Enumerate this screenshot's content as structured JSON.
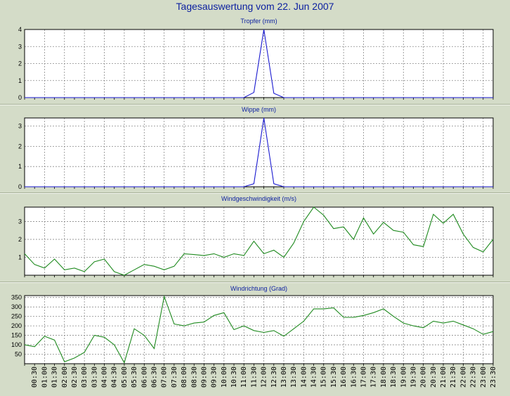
{
  "title": "Tagesauswertung vom 22. Jun 2007",
  "colors": {
    "background": "#d4dcc8",
    "plot_background": "#ffffff",
    "grid": "#8a8a8a",
    "title_text": "#0b1fa0",
    "rain_series": "#1a1ad0",
    "wind_series": "#1f8a1f"
  },
  "x_tick_labels": [
    "00:30",
    "01:00",
    "01:30",
    "02:00",
    "02:30",
    "03:00",
    "03:30",
    "04:00",
    "04:30",
    "05:00",
    "05:30",
    "06:00",
    "06:30",
    "07:00",
    "07:30",
    "08:00",
    "08:30",
    "09:00",
    "09:30",
    "10:00",
    "10:30",
    "11:00",
    "11:30",
    "12:00",
    "12:30",
    "13:00",
    "13:30",
    "14:00",
    "14:30",
    "15:00",
    "15:30",
    "16:00",
    "16:30",
    "17:00",
    "17:30",
    "18:00",
    "18:30",
    "19:00",
    "19:30",
    "20:00",
    "20:30",
    "21:00",
    "21:30",
    "22:00",
    "22:30",
    "23:00",
    "23:30"
  ],
  "chart_data": [
    {
      "type": "line",
      "title": "Tropfer (mm)",
      "color_key": "rain_series",
      "ylim": [
        0,
        4
      ],
      "yticks": [
        0,
        1,
        2,
        3,
        4
      ],
      "grid": true,
      "x": [
        "00:00",
        "00:30",
        "01:00",
        "01:30",
        "02:00",
        "02:30",
        "03:00",
        "03:30",
        "04:00",
        "04:30",
        "05:00",
        "05:30",
        "06:00",
        "06:30",
        "07:00",
        "07:30",
        "08:00",
        "08:30",
        "09:00",
        "09:30",
        "10:00",
        "10:30",
        "11:00",
        "11:30",
        "12:00",
        "12:30",
        "13:00",
        "13:30",
        "14:00",
        "14:30",
        "15:00",
        "15:30",
        "16:00",
        "16:30",
        "17:00",
        "17:30",
        "18:00",
        "18:30",
        "19:00",
        "19:30",
        "20:00",
        "20:30",
        "21:00",
        "21:30",
        "22:00",
        "22:30",
        "23:00",
        "23:30"
      ],
      "values": [
        0,
        0,
        0,
        0,
        0,
        0,
        0,
        0,
        0,
        0,
        0,
        0,
        0,
        0,
        0,
        0,
        0,
        0,
        0,
        0,
        0,
        0,
        0,
        0.3,
        4.0,
        0.25,
        0,
        0,
        0,
        0,
        0,
        0,
        0,
        0,
        0,
        0,
        0,
        0,
        0,
        0,
        0,
        0,
        0,
        0,
        0,
        0,
        0,
        0
      ]
    },
    {
      "type": "line",
      "title": "Wippe (mm)",
      "color_key": "rain_series",
      "ylim": [
        0,
        3.4
      ],
      "yticks": [
        0,
        1,
        2,
        3
      ],
      "grid": true,
      "x": [
        "00:00",
        "00:30",
        "01:00",
        "01:30",
        "02:00",
        "02:30",
        "03:00",
        "03:30",
        "04:00",
        "04:30",
        "05:00",
        "05:30",
        "06:00",
        "06:30",
        "07:00",
        "07:30",
        "08:00",
        "08:30",
        "09:00",
        "09:30",
        "10:00",
        "10:30",
        "11:00",
        "11:30",
        "12:00",
        "12:30",
        "13:00",
        "13:30",
        "14:00",
        "14:30",
        "15:00",
        "15:30",
        "16:00",
        "16:30",
        "17:00",
        "17:30",
        "18:00",
        "18:30",
        "19:00",
        "19:30",
        "20:00",
        "20:30",
        "21:00",
        "21:30",
        "22:00",
        "22:30",
        "23:00",
        "23:30"
      ],
      "values": [
        0,
        0,
        0,
        0,
        0,
        0,
        0,
        0,
        0,
        0,
        0,
        0,
        0,
        0,
        0,
        0,
        0,
        0,
        0,
        0,
        0,
        0,
        0,
        0.15,
        3.4,
        0.15,
        0,
        0,
        0,
        0,
        0,
        0,
        0,
        0,
        0,
        0,
        0,
        0,
        0,
        0,
        0,
        0,
        0,
        0,
        0,
        0,
        0,
        0
      ]
    },
    {
      "type": "line",
      "title": "Windgeschwindigkeit (m/s)",
      "color_key": "wind_series",
      "ylim": [
        0,
        3.8
      ],
      "yticks": [
        1,
        2,
        3
      ],
      "grid": true,
      "x": [
        "00:00",
        "00:30",
        "01:00",
        "01:30",
        "02:00",
        "02:30",
        "03:00",
        "03:30",
        "04:00",
        "04:30",
        "05:00",
        "05:30",
        "06:00",
        "06:30",
        "07:00",
        "07:30",
        "08:00",
        "08:30",
        "09:00",
        "09:30",
        "10:00",
        "10:30",
        "11:00",
        "11:30",
        "12:00",
        "12:30",
        "13:00",
        "13:30",
        "14:00",
        "14:30",
        "15:00",
        "15:30",
        "16:00",
        "16:30",
        "17:00",
        "17:30",
        "18:00",
        "18:30",
        "19:00",
        "19:30",
        "20:00",
        "20:30",
        "21:00",
        "21:30",
        "22:00",
        "22:30",
        "23:00",
        "23:30"
      ],
      "values": [
        1.2,
        0.6,
        0.4,
        0.9,
        0.3,
        0.4,
        0.2,
        0.75,
        0.9,
        0.2,
        0.0,
        0.3,
        0.6,
        0.5,
        0.3,
        0.5,
        1.2,
        1.15,
        1.1,
        1.2,
        1.0,
        1.2,
        1.1,
        1.9,
        1.2,
        1.4,
        1.0,
        1.8,
        3.0,
        3.8,
        3.35,
        2.6,
        2.7,
        2.0,
        3.2,
        2.3,
        2.95,
        2.5,
        2.4,
        1.7,
        1.6,
        3.4,
        2.9,
        3.4,
        2.3,
        1.55,
        1.3,
        2.0
      ]
    },
    {
      "type": "line",
      "title": "Windrichtung (Grad)",
      "color_key": "wind_series",
      "ylim": [
        0,
        360
      ],
      "yticks": [
        50,
        100,
        150,
        200,
        250,
        300,
        350
      ],
      "grid": true,
      "x": [
        "00:00",
        "00:30",
        "01:00",
        "01:30",
        "02:00",
        "02:30",
        "03:00",
        "03:30",
        "04:00",
        "04:30",
        "05:00",
        "05:30",
        "06:00",
        "06:30",
        "07:00",
        "07:30",
        "08:00",
        "08:30",
        "09:00",
        "09:30",
        "10:00",
        "10:30",
        "11:00",
        "11:30",
        "12:00",
        "12:30",
        "13:00",
        "13:30",
        "14:00",
        "14:30",
        "15:00",
        "15:30",
        "16:00",
        "16:30",
        "17:00",
        "17:30",
        "18:00",
        "18:30",
        "19:00",
        "19:30",
        "20:00",
        "20:30",
        "21:00",
        "21:30",
        "22:00",
        "22:30",
        "23:00",
        "23:30"
      ],
      "values": [
        100,
        90,
        145,
        125,
        10,
        30,
        60,
        150,
        140,
        100,
        5,
        185,
        150,
        80,
        355,
        210,
        200,
        215,
        220,
        255,
        270,
        180,
        200,
        175,
        165,
        175,
        145,
        185,
        225,
        290,
        290,
        295,
        245,
        245,
        255,
        270,
        290,
        250,
        215,
        200,
        190,
        225,
        215,
        225,
        205,
        185,
        155,
        170
      ]
    }
  ]
}
